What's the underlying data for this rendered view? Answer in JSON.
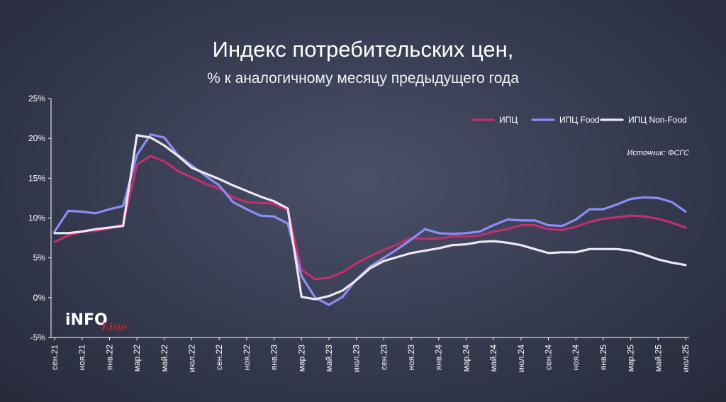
{
  "chart_data": {
    "type": "line",
    "title": "Индекс потребительских цен,",
    "subtitle": "% к аналогичному месяцу предыдущего года",
    "source": "Источник: ФСГС",
    "logo": "INFOLine",
    "ylim": [
      -5,
      25
    ],
    "yticks": [
      "-5%",
      "0%",
      "5%",
      "10%",
      "15%",
      "20%",
      "25%"
    ],
    "ytick_values": [
      -5,
      0,
      5,
      10,
      15,
      20,
      25
    ],
    "xtick_labels": [
      "сен.21",
      "ноя.21",
      "янв.22",
      "мар.22",
      "май.22",
      "июл.22",
      "сен.22",
      "ноя.22",
      "янв.23",
      "мар.23",
      "май.23",
      "июл.23",
      "сен.23",
      "ноя.23",
      "янв.24",
      "мар.24",
      "май.24",
      "июл.24",
      "сен.24",
      "ноя.24",
      "янв.25",
      "мар.25",
      "май.25",
      "июл.25"
    ],
    "x": [
      "сен.21",
      "окт.21",
      "ноя.21",
      "дек.21",
      "янв.22",
      "фев.22",
      "мар.22",
      "апр.22",
      "май.22",
      "июн.22",
      "июл.22",
      "авг.22",
      "сен.22",
      "окт.22",
      "ноя.22",
      "дек.22",
      "янв.23",
      "фев.23",
      "мар.23",
      "апр.23",
      "май.23",
      "июн.23",
      "июл.23",
      "авг.23",
      "сен.23",
      "окт.23",
      "ноя.23",
      "дек.23",
      "янв.24",
      "фев.24",
      "мар.24",
      "апр.24",
      "май.24",
      "июн.24",
      "июл.24",
      "авг.24",
      "сен.24",
      "окт.24",
      "ноя.24",
      "дек.24",
      "янв.25",
      "фев.25",
      "мар.25",
      "апр.25",
      "май.25",
      "июн.25",
      "июл.25"
    ],
    "legend_position": "top-right",
    "grid": false,
    "series": [
      {
        "name": "ИПЦ",
        "color": "#c0306e",
        "values": [
          7.0,
          7.8,
          8.3,
          8.4,
          8.7,
          9.2,
          16.7,
          17.8,
          17.1,
          15.9,
          15.1,
          14.3,
          13.7,
          12.6,
          12.0,
          11.9,
          11.8,
          11.0,
          3.5,
          2.3,
          2.5,
          3.2,
          4.3,
          5.2,
          6.0,
          6.7,
          7.5,
          7.4,
          7.4,
          7.7,
          7.7,
          7.8,
          8.3,
          8.6,
          9.1,
          9.1,
          8.6,
          8.5,
          8.9,
          9.5,
          9.9,
          10.1,
          10.3,
          10.2,
          9.9,
          9.4,
          8.8
        ]
      },
      {
        "name": "ИПЦ Food",
        "color": "#8a8ef5",
        "values": [
          8.3,
          10.9,
          10.8,
          10.6,
          11.1,
          11.5,
          17.9,
          20.5,
          20.1,
          17.9,
          16.6,
          15.3,
          14.1,
          12.0,
          11.1,
          10.3,
          10.2,
          9.3,
          2.7,
          0.0,
          -0.9,
          0.1,
          2.3,
          3.9,
          5.0,
          6.1,
          7.3,
          8.6,
          8.1,
          8.0,
          8.1,
          8.3,
          9.1,
          9.8,
          9.7,
          9.7,
          9.1,
          9.0,
          9.8,
          11.1,
          11.1,
          11.7,
          12.4,
          12.6,
          12.5,
          12.0,
          10.8
        ]
      },
      {
        "name": "ИПЦ Non-Food",
        "color": "#f0e6f0",
        "values": [
          8.1,
          8.1,
          8.3,
          8.6,
          8.8,
          9.0,
          20.4,
          20.1,
          19.1,
          17.8,
          16.3,
          15.6,
          14.9,
          14.1,
          13.4,
          12.7,
          12.1,
          11.2,
          0.1,
          -0.2,
          0.2,
          0.9,
          2.2,
          3.7,
          4.6,
          5.1,
          5.6,
          5.9,
          6.2,
          6.6,
          6.7,
          7.0,
          7.1,
          6.9,
          6.6,
          6.1,
          5.6,
          5.7,
          5.7,
          6.1,
          6.1,
          6.1,
          5.9,
          5.4,
          4.8,
          4.4,
          4.1
        ]
      }
    ]
  }
}
